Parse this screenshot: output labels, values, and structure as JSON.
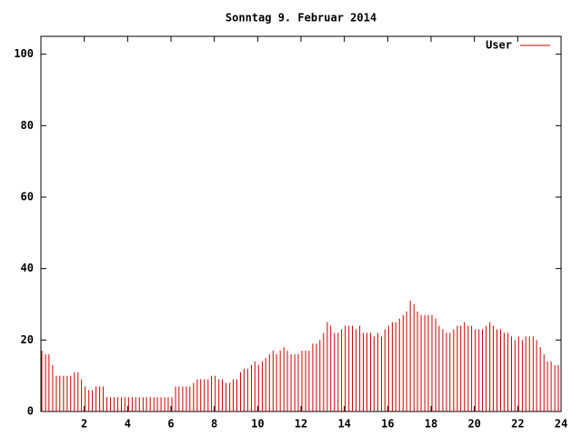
{
  "chart_data": {
    "type": "impulse",
    "title": "Sonntag 9. Februar 2014",
    "legend": "top right",
    "series": [
      {
        "name": "User",
        "color": "#cc0000",
        "x": [
          0,
          0.17,
          0.33,
          0.5,
          0.67,
          0.83,
          1,
          1.17,
          1.33,
          1.5,
          1.67,
          1.83,
          2,
          2.17,
          2.33,
          2.5,
          2.67,
          2.83,
          3,
          3.17,
          3.33,
          3.5,
          3.67,
          3.83,
          4,
          4.17,
          4.33,
          4.5,
          4.67,
          4.83,
          5,
          5.17,
          5.33,
          5.5,
          5.67,
          5.83,
          6,
          6.17,
          6.33,
          6.5,
          6.67,
          6.83,
          7,
          7.17,
          7.33,
          7.5,
          7.67,
          7.83,
          8,
          8.17,
          8.33,
          8.5,
          8.67,
          8.83,
          9,
          9.17,
          9.33,
          9.5,
          9.67,
          9.83,
          10,
          10.17,
          10.33,
          10.5,
          10.67,
          10.83,
          11,
          11.17,
          11.33,
          11.5,
          11.67,
          11.83,
          12,
          12.17,
          12.33,
          12.5,
          12.67,
          12.83,
          13,
          13.17,
          13.33,
          13.5,
          13.67,
          13.83,
          14,
          14.17,
          14.33,
          14.5,
          14.67,
          14.83,
          15,
          15.17,
          15.33,
          15.5,
          15.67,
          15.83,
          16,
          16.17,
          16.33,
          16.5,
          16.67,
          16.83,
          17,
          17.17,
          17.33,
          17.5,
          17.67,
          17.83,
          18,
          18.17,
          18.33,
          18.5,
          18.67,
          18.83,
          19,
          19.17,
          19.33,
          19.5,
          19.67,
          19.83,
          20,
          20.17,
          20.33,
          20.5,
          20.67,
          20.83,
          21,
          21.17,
          21.33,
          21.5,
          21.67,
          21.83,
          22,
          22.17,
          22.33,
          22.5,
          22.67,
          22.83,
          23,
          23.17,
          23.33,
          23.5,
          23.67,
          23.83
        ],
        "values": [
          17,
          16,
          16,
          13,
          10,
          10,
          10,
          10,
          10,
          11,
          11,
          9,
          7,
          6,
          6,
          7,
          7,
          7,
          4,
          4,
          4,
          4,
          4,
          4,
          4,
          4,
          4,
          4,
          4,
          4,
          4,
          4,
          4,
          4,
          4,
          4,
          4,
          7,
          7,
          7,
          7,
          7,
          8,
          9,
          9,
          9,
          9,
          10,
          10,
          9,
          9,
          8,
          8,
          9,
          9,
          11,
          12,
          12,
          13,
          14,
          13,
          14,
          15,
          16,
          17,
          16,
          17,
          18,
          17,
          16,
          16,
          16,
          17,
          17,
          17,
          19,
          19,
          20,
          22,
          25,
          24,
          22,
          22,
          23,
          24,
          24,
          24,
          23,
          24,
          22,
          22,
          22,
          21,
          22,
          21,
          23,
          24,
          25,
          25,
          26,
          27,
          28,
          31,
          30,
          28,
          27,
          27,
          27,
          27,
          26,
          24,
          23,
          22,
          22,
          23,
          24,
          24,
          25,
          24,
          24,
          23,
          23,
          23,
          24,
          25,
          24,
          23,
          23,
          22,
          22,
          21,
          20,
          21,
          20,
          21,
          21,
          21,
          20,
          18,
          16,
          14,
          14,
          13,
          13
        ]
      }
    ],
    "xlim": [
      0,
      24
    ],
    "xticks": [
      2,
      4,
      6,
      8,
      10,
      12,
      14,
      16,
      18,
      20,
      22,
      24
    ],
    "ylim": [
      0,
      105
    ],
    "yticks": [
      0,
      20,
      40,
      60,
      80,
      100
    ]
  }
}
